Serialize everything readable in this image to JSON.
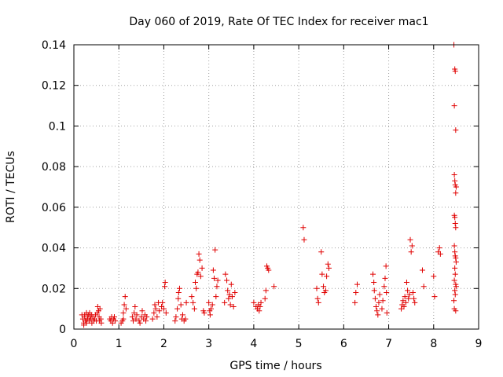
{
  "chart_data": {
    "type": "scatter",
    "title": "Day 060 of 2019, Rate Of TEC Index for receiver mac1",
    "xlabel": "GPS time / hours",
    "ylabel": "ROTI / TECUs",
    "xlim": [
      0,
      9
    ],
    "ylim": [
      0,
      0.14
    ],
    "xticks": [
      0,
      1,
      2,
      3,
      4,
      5,
      6,
      7,
      8,
      9
    ],
    "xtick_labels": [
      "0",
      "1",
      "2",
      "3",
      "4",
      "5",
      "6",
      "7",
      "8",
      "9"
    ],
    "yticks": [
      0,
      0.02,
      0.04,
      0.06,
      0.08,
      0.1,
      0.12,
      0.14
    ],
    "ytick_labels": [
      "0",
      "0.02",
      "0.04",
      "0.06",
      "0.08",
      "0.1",
      "0.12",
      "0.14"
    ],
    "grid": true,
    "marker": "plus",
    "color": "#e00000",
    "series": [
      {
        "name": "ROTI",
        "points": [
          [
            0.18,
            0.007
          ],
          [
            0.2,
            0.005
          ],
          [
            0.22,
            0.003
          ],
          [
            0.24,
            0.006
          ],
          [
            0.26,
            0.004
          ],
          [
            0.28,
            0.008
          ],
          [
            0.3,
            0.005
          ],
          [
            0.32,
            0.007
          ],
          [
            0.34,
            0.004
          ],
          [
            0.36,
            0.006
          ],
          [
            0.38,
            0.005
          ],
          [
            0.4,
            0.003
          ],
          [
            0.42,
            0.006
          ],
          [
            0.44,
            0.004
          ],
          [
            0.46,
            0.005
          ],
          [
            0.48,
            0.007
          ],
          [
            0.5,
            0.004
          ],
          [
            0.22,
            0.002
          ],
          [
            0.28,
            0.003
          ],
          [
            0.35,
            0.008
          ],
          [
            0.24,
            0.007
          ],
          [
            0.31,
            0.006
          ],
          [
            0.27,
            0.004
          ],
          [
            0.39,
            0.007
          ],
          [
            0.52,
            0.008
          ],
          [
            0.53,
            0.011
          ],
          [
            0.55,
            0.009
          ],
          [
            0.56,
            0.006
          ],
          [
            0.57,
            0.004
          ],
          [
            0.58,
            0.01
          ],
          [
            0.6,
            0.005
          ],
          [
            0.61,
            0.003
          ],
          [
            0.8,
            0.005
          ],
          [
            0.82,
            0.004
          ],
          [
            0.84,
            0.006
          ],
          [
            0.86,
            0.003
          ],
          [
            0.88,
            0.005
          ],
          [
            0.9,
            0.006
          ],
          [
            0.92,
            0.004
          ],
          [
            1.05,
            0.003
          ],
          [
            1.08,
            0.004
          ],
          [
            1.1,
            0.008
          ],
          [
            1.12,
            0.012
          ],
          [
            1.14,
            0.016
          ],
          [
            1.16,
            0.01
          ],
          [
            1.1,
            0.005
          ],
          [
            1.3,
            0.006
          ],
          [
            1.32,
            0.004
          ],
          [
            1.34,
            0.008
          ],
          [
            1.36,
            0.011
          ],
          [
            1.38,
            0.005
          ],
          [
            1.4,
            0.007
          ],
          [
            1.45,
            0.004
          ],
          [
            1.47,
            0.003
          ],
          [
            1.5,
            0.006
          ],
          [
            1.52,
            0.009
          ],
          [
            1.55,
            0.005
          ],
          [
            1.58,
            0.007
          ],
          [
            1.6,
            0.004
          ],
          [
            1.62,
            0.006
          ],
          [
            1.75,
            0.005
          ],
          [
            1.78,
            0.008
          ],
          [
            1.8,
            0.012
          ],
          [
            1.82,
            0.01
          ],
          [
            1.85,
            0.006
          ],
          [
            1.88,
            0.013
          ],
          [
            1.9,
            0.009
          ],
          [
            1.95,
            0.011
          ],
          [
            1.97,
            0.013
          ],
          [
            2.0,
            0.01
          ],
          [
            2.02,
            0.021
          ],
          [
            2.03,
            0.023
          ],
          [
            2.05,
            0.008
          ],
          [
            2.25,
            0.004
          ],
          [
            2.27,
            0.006
          ],
          [
            2.3,
            0.01
          ],
          [
            2.32,
            0.015
          ],
          [
            2.33,
            0.018
          ],
          [
            2.35,
            0.02
          ],
          [
            2.38,
            0.012
          ],
          [
            2.4,
            0.005
          ],
          [
            2.42,
            0.007
          ],
          [
            2.45,
            0.004
          ],
          [
            2.48,
            0.005
          ],
          [
            2.5,
            0.013
          ],
          [
            2.62,
            0.016
          ],
          [
            2.65,
            0.013
          ],
          [
            2.68,
            0.01
          ],
          [
            2.7,
            0.023
          ],
          [
            2.72,
            0.02
          ],
          [
            2.74,
            0.027
          ],
          [
            2.76,
            0.028
          ],
          [
            2.78,
            0.037
          ],
          [
            2.8,
            0.034
          ],
          [
            2.82,
            0.026
          ],
          [
            2.85,
            0.03
          ],
          [
            2.88,
            0.009
          ],
          [
            2.9,
            0.008
          ],
          [
            3.0,
            0.013
          ],
          [
            3.02,
            0.009
          ],
          [
            3.03,
            0.007
          ],
          [
            3.05,
            0.01
          ],
          [
            3.08,
            0.012
          ],
          [
            3.1,
            0.029
          ],
          [
            3.12,
            0.025
          ],
          [
            3.14,
            0.039
          ],
          [
            3.16,
            0.016
          ],
          [
            3.18,
            0.021
          ],
          [
            3.2,
            0.024
          ],
          [
            3.35,
            0.013
          ],
          [
            3.37,
            0.027
          ],
          [
            3.4,
            0.024
          ],
          [
            3.42,
            0.019
          ],
          [
            3.44,
            0.015
          ],
          [
            3.46,
            0.017
          ],
          [
            3.48,
            0.012
          ],
          [
            3.5,
            0.022
          ],
          [
            3.52,
            0.016
          ],
          [
            3.55,
            0.011
          ],
          [
            3.58,
            0.018
          ],
          [
            4.0,
            0.013
          ],
          [
            4.05,
            0.011
          ],
          [
            4.08,
            0.01
          ],
          [
            4.1,
            0.012
          ],
          [
            4.12,
            0.009
          ],
          [
            4.14,
            0.011
          ],
          [
            4.16,
            0.013
          ],
          [
            4.25,
            0.015
          ],
          [
            4.27,
            0.019
          ],
          [
            4.29,
            0.031
          ],
          [
            4.31,
            0.03
          ],
          [
            4.33,
            0.029
          ],
          [
            4.45,
            0.021
          ],
          [
            5.1,
            0.05
          ],
          [
            5.12,
            0.044
          ],
          [
            5.4,
            0.02
          ],
          [
            5.42,
            0.015
          ],
          [
            5.44,
            0.013
          ],
          [
            5.5,
            0.038
          ],
          [
            5.52,
            0.027
          ],
          [
            5.55,
            0.021
          ],
          [
            5.57,
            0.018
          ],
          [
            5.6,
            0.019
          ],
          [
            5.62,
            0.026
          ],
          [
            5.65,
            0.032
          ],
          [
            5.67,
            0.03
          ],
          [
            6.25,
            0.013
          ],
          [
            6.27,
            0.018
          ],
          [
            6.3,
            0.022
          ],
          [
            6.65,
            0.027
          ],
          [
            6.67,
            0.023
          ],
          [
            6.68,
            0.019
          ],
          [
            6.7,
            0.015
          ],
          [
            6.72,
            0.011
          ],
          [
            6.74,
            0.009
          ],
          [
            6.76,
            0.007
          ],
          [
            6.78,
            0.013
          ],
          [
            6.8,
            0.017
          ],
          [
            6.85,
            0.01
          ],
          [
            6.87,
            0.014
          ],
          [
            6.9,
            0.021
          ],
          [
            6.92,
            0.025
          ],
          [
            6.94,
            0.031
          ],
          [
            6.95,
            0.018
          ],
          [
            6.96,
            0.008
          ],
          [
            7.28,
            0.01
          ],
          [
            7.3,
            0.012
          ],
          [
            7.32,
            0.014
          ],
          [
            7.34,
            0.011
          ],
          [
            7.36,
            0.016
          ],
          [
            7.38,
            0.013
          ],
          [
            7.4,
            0.023
          ],
          [
            7.42,
            0.019
          ],
          [
            7.44,
            0.015
          ],
          [
            7.46,
            0.017
          ],
          [
            7.48,
            0.044
          ],
          [
            7.5,
            0.038
          ],
          [
            7.52,
            0.041
          ],
          [
            7.54,
            0.018
          ],
          [
            7.56,
            0.015
          ],
          [
            7.58,
            0.013
          ],
          [
            7.75,
            0.029
          ],
          [
            7.78,
            0.021
          ],
          [
            8.0,
            0.026
          ],
          [
            8.02,
            0.016
          ],
          [
            8.1,
            0.038
          ],
          [
            8.13,
            0.04
          ],
          [
            8.15,
            0.037
          ],
          [
            8.45,
            0.14
          ],
          [
            8.46,
            0.11
          ],
          [
            8.47,
            0.128
          ],
          [
            8.48,
            0.127
          ],
          [
            8.49,
            0.098
          ],
          [
            8.46,
            0.076
          ],
          [
            8.47,
            0.073
          ],
          [
            8.48,
            0.071
          ],
          [
            8.49,
            0.067
          ],
          [
            8.5,
            0.07
          ],
          [
            8.46,
            0.056
          ],
          [
            8.47,
            0.055
          ],
          [
            8.48,
            0.052
          ],
          [
            8.49,
            0.05
          ],
          [
            8.46,
            0.041
          ],
          [
            8.47,
            0.038
          ],
          [
            8.48,
            0.036
          ],
          [
            8.49,
            0.035
          ],
          [
            8.5,
            0.033
          ],
          [
            8.47,
            0.03
          ],
          [
            8.48,
            0.027
          ],
          [
            8.46,
            0.024
          ],
          [
            8.49,
            0.022
          ],
          [
            8.5,
            0.021
          ],
          [
            8.47,
            0.019
          ],
          [
            8.48,
            0.017
          ],
          [
            8.45,
            0.014
          ],
          [
            8.46,
            0.01
          ],
          [
            8.49,
            0.009
          ]
        ]
      }
    ]
  }
}
